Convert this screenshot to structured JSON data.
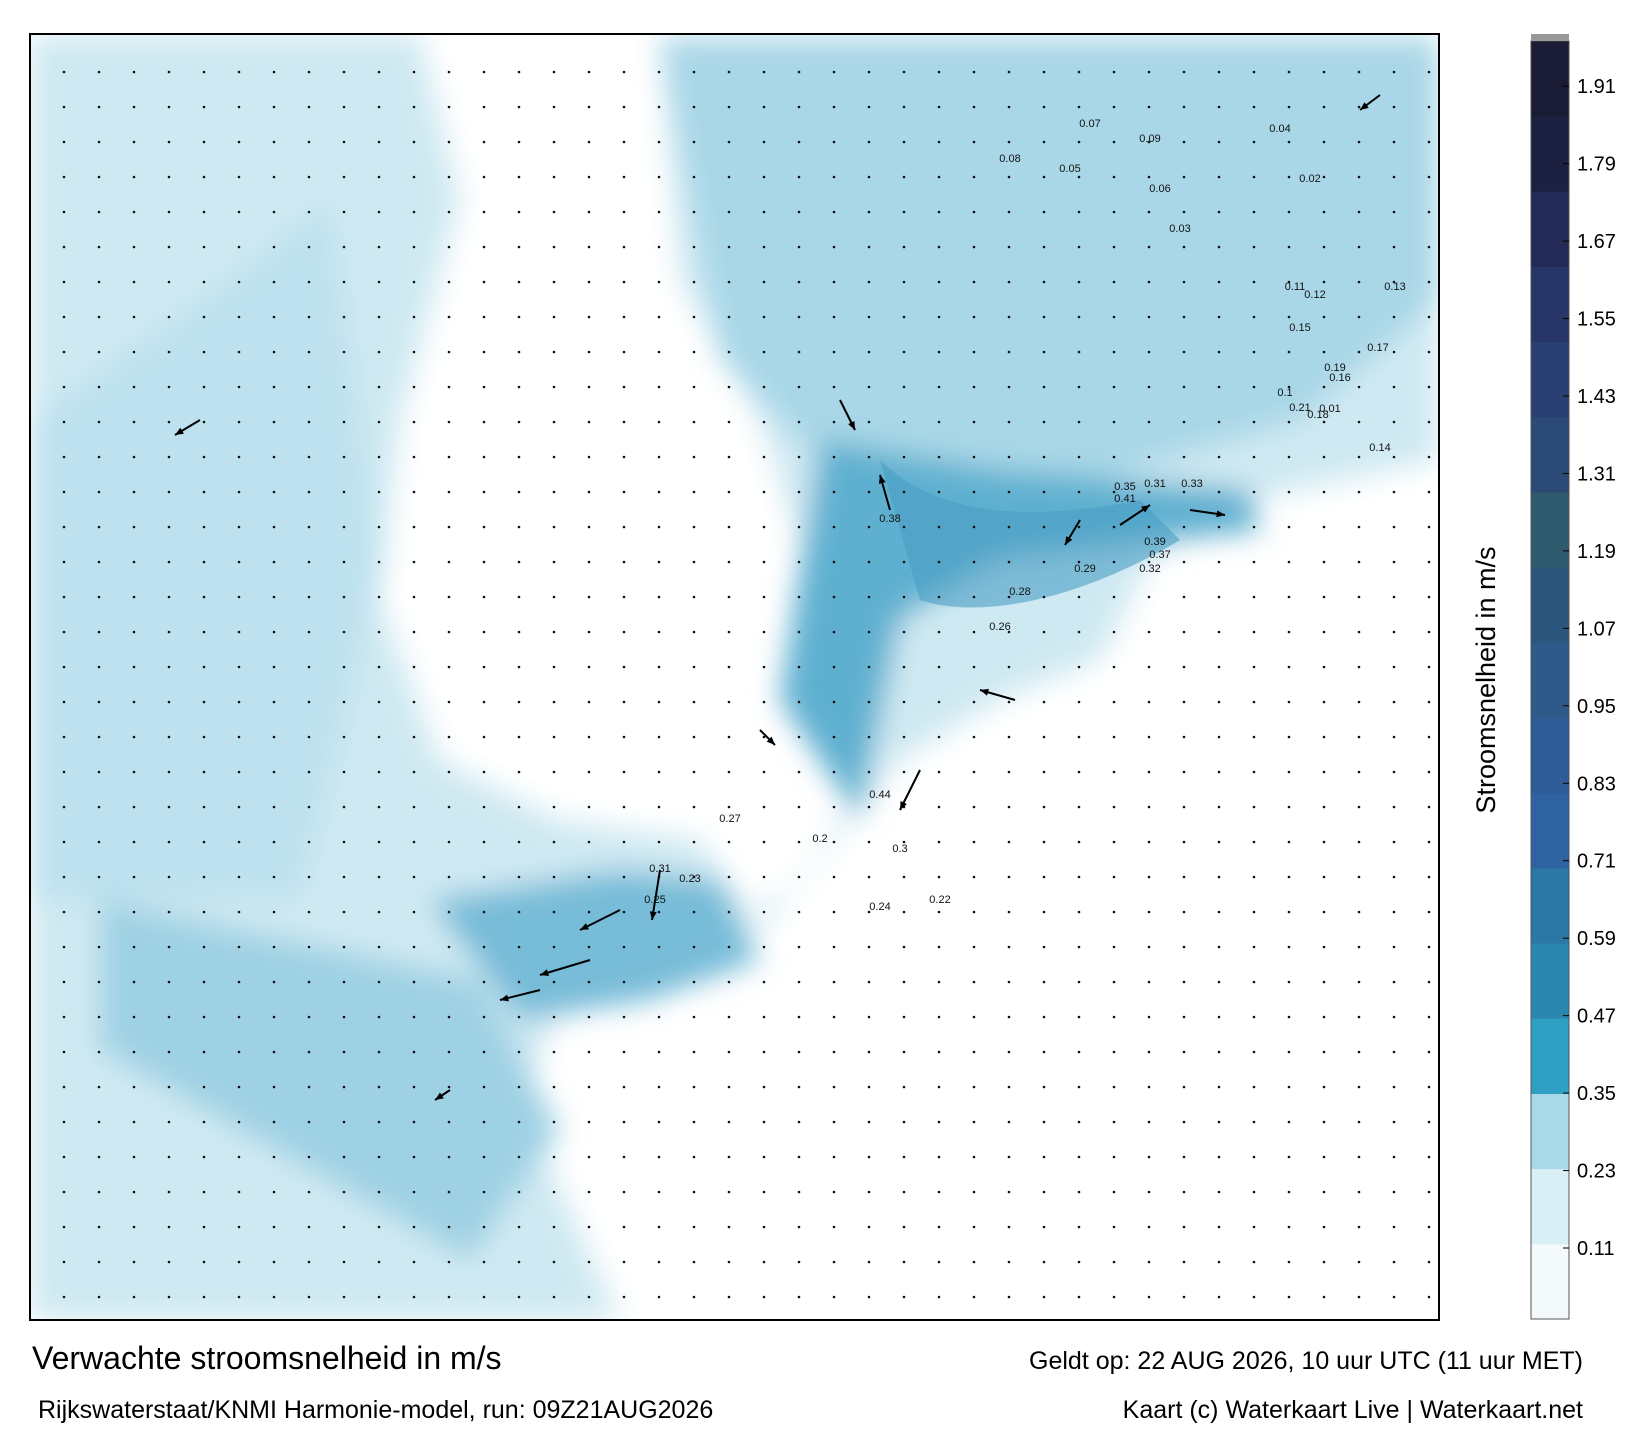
{
  "map": {
    "title": "Verwachte stroomsnelheid in m/s",
    "source": "Rijkswaterstaat/KNMI Harmonie-model, run: 09Z21AUG2026",
    "valid": "Geldt op: 22 AUG 2026, 10 uur UTC (11 uur MET)",
    "credit": "Kaart (c) Waterkaart Live | Waterkaart.net",
    "labels": [
      "0.44",
      "0.41",
      "0.38",
      "0.35",
      "0.31",
      "0.33",
      "0.32",
      "0.29",
      "0.28",
      "0.26",
      "0.24",
      "0.22",
      "0.21",
      "0.19",
      "0.18",
      "0.17",
      "0.16",
      "0.15",
      "0.14",
      "0.13",
      "0.12",
      "0.11",
      "0.1",
      "0.09",
      "0.08",
      "0.07",
      "0.06",
      "0.05",
      "0.04",
      "0.03",
      "0.02",
      "0.01",
      "0.31",
      "0.25",
      "0.27",
      "0.23",
      "0.2",
      "0.3",
      "0.37",
      "0.39"
    ]
  },
  "colorbar": {
    "label": "Stroomsnelheid in m/s",
    "clim": [
      0,
      1.98
    ],
    "ticks": [
      0.11,
      0.23,
      0.35,
      0.47,
      0.59,
      0.71,
      0.83,
      0.95,
      1.07,
      1.19,
      1.31,
      1.43,
      1.55,
      1.67,
      1.79,
      1.91
    ],
    "colors": [
      "#f4fafc",
      "#d9eef5",
      "#a9d8e8",
      "#2f9fc4",
      "#2b87b0",
      "#2b78a6",
      "#2f62a1",
      "#2e5c96",
      "#2e5a8a",
      "#2d567d",
      "#2f5a6e",
      "#2c4a76",
      "#2a3f72",
      "#283567",
      "#232a55",
      "#1d2141",
      "#1a1c35"
    ]
  }
}
